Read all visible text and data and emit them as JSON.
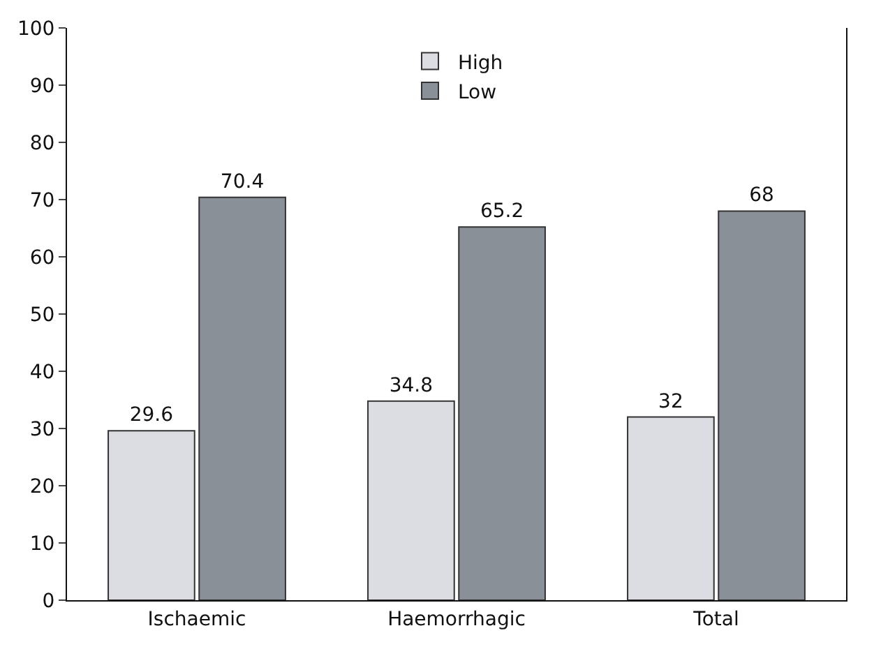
{
  "chart_data": {
    "type": "bar",
    "categories": [
      "Ischaemic",
      "Haemorrhagic",
      "Total"
    ],
    "series": [
      {
        "name": "High",
        "color": "#dcdde2",
        "values": [
          29.6,
          34.8,
          32
        ]
      },
      {
        "name": "Low",
        "color": "#8a9097",
        "values": [
          70.4,
          65.2,
          68
        ]
      }
    ],
    "ylim": [
      0,
      100
    ],
    "yticks": [
      0,
      10,
      20,
      30,
      40,
      50,
      60,
      70,
      80,
      90,
      100
    ],
    "legend": "top",
    "data_labels": true
  }
}
